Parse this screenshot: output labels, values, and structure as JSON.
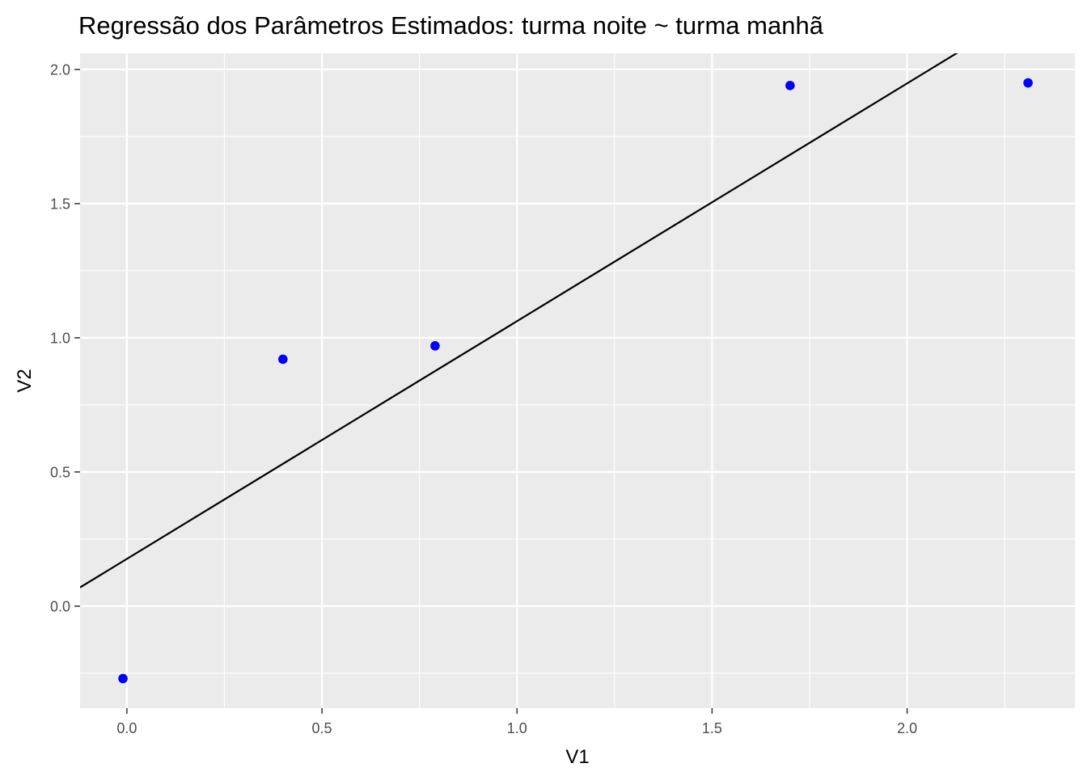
{
  "chart_data": {
    "type": "scatter",
    "title": "Regressão dos Parâmetros Estimados: turma noite ~ turma manhã",
    "xlabel": "V1",
    "ylabel": "V2",
    "xlim": [
      -0.12,
      2.43
    ],
    "ylim": [
      -0.38,
      2.06
    ],
    "x_ticks": [
      0.0,
      0.5,
      1.0,
      1.5,
      2.0
    ],
    "x_tick_labels": [
      "0.0",
      "0.5",
      "1.0",
      "1.5",
      "2.0"
    ],
    "y_ticks": [
      0.0,
      0.5,
      1.0,
      1.5,
      2.0
    ],
    "y_tick_labels": [
      "0.0",
      "0.5",
      "1.0",
      "1.5",
      "2.0"
    ],
    "grid": true,
    "legend": "none",
    "series": [
      {
        "type": "scatter",
        "color": "#0000ff",
        "x": [
          -0.01,
          0.4,
          0.79,
          1.7,
          2.31
        ],
        "y": [
          -0.27,
          0.92,
          0.97,
          1.94,
          1.95
        ]
      },
      {
        "type": "line",
        "color": "#000000",
        "intercept": 0.176,
        "slope": 0.886
      }
    ],
    "colors": {
      "panel_background": "#ebebeb",
      "grid": "#ffffff",
      "points": "#0000ff",
      "regression_line": "#000000"
    }
  }
}
